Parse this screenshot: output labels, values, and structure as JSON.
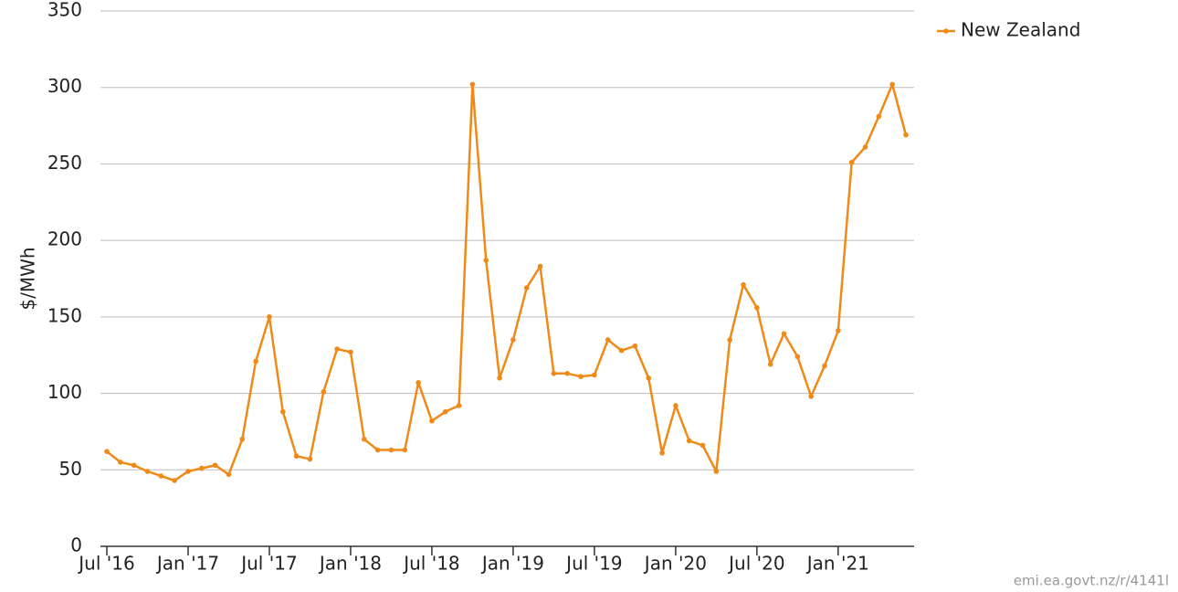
{
  "chart_data": {
    "type": "line",
    "y_label": "$/MWh",
    "footer": "emi.ea.govt.nz/r/4141l",
    "categories": [
      "Jul '16",
      null,
      null,
      null,
      null,
      null,
      "Jan '17",
      null,
      null,
      null,
      null,
      null,
      "Jul '17",
      null,
      null,
      null,
      null,
      null,
      "Jan '18",
      null,
      null,
      null,
      null,
      null,
      "Jul '18",
      null,
      null,
      null,
      null,
      null,
      "Jan '19",
      null,
      null,
      null,
      null,
      null,
      "Jul '19",
      null,
      null,
      null,
      null,
      null,
      "Jan '20",
      null,
      null,
      null,
      null,
      null,
      "Jul '20",
      null,
      null,
      null,
      null,
      null,
      "Jan '21",
      null,
      null,
      null,
      null,
      null
    ],
    "series": [
      {
        "name": "New Zealand",
        "color": "#f08a17",
        "values": [
          62,
          55,
          53,
          49,
          46,
          43,
          49,
          51,
          53,
          47,
          70,
          121,
          150,
          88,
          59,
          57,
          101,
          129,
          127,
          70,
          63,
          63,
          63,
          107,
          82,
          88,
          92,
          302,
          187,
          110,
          135,
          169,
          183,
          113,
          113,
          111,
          112,
          135,
          128,
          131,
          110,
          61,
          92,
          69,
          66,
          49,
          135,
          171,
          156,
          119,
          139,
          124,
          98,
          118,
          141,
          251,
          261,
          281,
          302,
          269
        ]
      }
    ],
    "ylim": [
      0,
      350
    ],
    "yticks": [
      0,
      50,
      100,
      150,
      200,
      250,
      300,
      350
    ],
    "grid": true,
    "legend": "top-right"
  }
}
